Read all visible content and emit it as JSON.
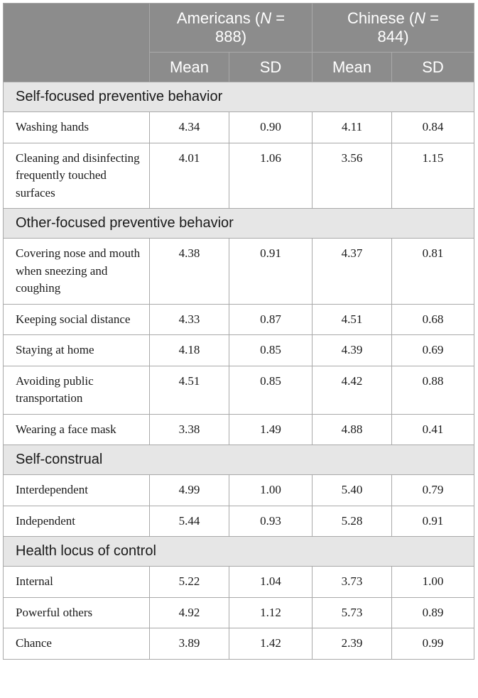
{
  "header": {
    "groups": [
      {
        "name": "Americans",
        "n_label": "N",
        "n_value": "888"
      },
      {
        "name": "Chinese",
        "n_label": "N",
        "n_value": "844"
      }
    ],
    "subcols": [
      "Mean",
      "SD",
      "Mean",
      "SD"
    ]
  },
  "sections": [
    {
      "title": "Self-focused preventive behavior",
      "rows": [
        {
          "label": "Washing hands",
          "values": [
            "4.34",
            "0.90",
            "4.11",
            "0.84"
          ]
        },
        {
          "label": "Cleaning and disinfecting frequently touched surfaces",
          "values": [
            "4.01",
            "1.06",
            "3.56",
            "1.15"
          ]
        }
      ]
    },
    {
      "title": "Other-focused preventive behavior",
      "rows": [
        {
          "label": "Covering nose and mouth when sneezing and coughing",
          "values": [
            "4.38",
            "0.91",
            "4.37",
            "0.81"
          ]
        },
        {
          "label": "Keeping social distance",
          "values": [
            "4.33",
            "0.87",
            "4.51",
            "0.68"
          ]
        },
        {
          "label": "Staying at home",
          "values": [
            "4.18",
            "0.85",
            "4.39",
            "0.69"
          ]
        },
        {
          "label": "Avoiding public transportation",
          "values": [
            "4.51",
            "0.85",
            "4.42",
            "0.88"
          ]
        },
        {
          "label": "Wearing a face mask",
          "values": [
            "3.38",
            "1.49",
            "4.88",
            "0.41"
          ]
        }
      ]
    },
    {
      "title": "Self-construal",
      "rows": [
        {
          "label": "Interdependent",
          "values": [
            "4.99",
            "1.00",
            "5.40",
            "0.79"
          ]
        },
        {
          "label": "Independent",
          "values": [
            "5.44",
            "0.93",
            "5.28",
            "0.91"
          ]
        }
      ]
    },
    {
      "title": "Health locus of control",
      "rows": [
        {
          "label": "Internal",
          "values": [
            "5.22",
            "1.04",
            "3.73",
            "1.00"
          ]
        },
        {
          "label": "Powerful others",
          "values": [
            "4.92",
            "1.12",
            "5.73",
            "0.89"
          ]
        },
        {
          "label": "Chance",
          "values": [
            "3.89",
            "1.42",
            "2.39",
            "0.99"
          ]
        }
      ]
    }
  ]
}
